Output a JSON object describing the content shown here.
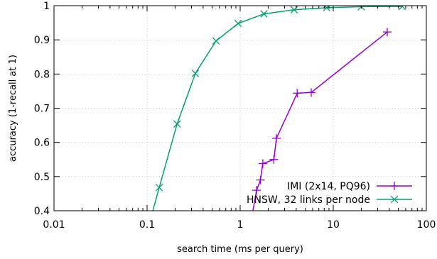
{
  "chart_data": {
    "type": "line",
    "title": "",
    "xlabel": "search time (ms per query)",
    "ylabel": "accuracy (1-recall at 1)",
    "xscale": "log",
    "xlim": [
      0.01,
      100
    ],
    "ylim": [
      0.4,
      1.0
    ],
    "x_ticks": [
      {
        "value": 0.01,
        "label": "0.01"
      },
      {
        "value": 0.1,
        "label": "0.1"
      },
      {
        "value": 1,
        "label": "1"
      },
      {
        "value": 10,
        "label": "10"
      },
      {
        "value": 100,
        "label": "100"
      }
    ],
    "y_ticks": [
      {
        "value": 0.4,
        "label": "0.4"
      },
      {
        "value": 0.5,
        "label": "0.5"
      },
      {
        "value": 0.6,
        "label": "0.6"
      },
      {
        "value": 0.7,
        "label": "0.7"
      },
      {
        "value": 0.8,
        "label": "0.8"
      },
      {
        "value": 0.9,
        "label": "0.9"
      },
      {
        "value": 1.0,
        "label": "1"
      }
    ],
    "grid": true,
    "legend_position": "bottom-right",
    "series": [
      {
        "name": "IMI (2x14, PQ96)",
        "color": "#9400d3",
        "marker": "plus",
        "points": [
          [
            1.33,
            0.38
          ],
          [
            1.5,
            0.46
          ],
          [
            1.65,
            0.49
          ],
          [
            1.75,
            0.538
          ],
          [
            2.3,
            0.55
          ],
          [
            2.45,
            0.612
          ],
          [
            4.1,
            0.744
          ],
          [
            5.8,
            0.746
          ],
          [
            38,
            0.923
          ]
        ]
      },
      {
        "name": "HNSW, 32 links per node",
        "color": "#009e73",
        "marker": "cross",
        "points": [
          [
            0.11,
            0.38
          ],
          [
            0.135,
            0.468
          ],
          [
            0.21,
            0.654
          ],
          [
            0.33,
            0.802
          ],
          [
            0.55,
            0.897
          ],
          [
            0.95,
            0.948
          ],
          [
            1.8,
            0.976
          ],
          [
            3.8,
            0.988
          ],
          [
            8.5,
            0.994
          ],
          [
            20,
            0.997
          ],
          [
            55,
            0.998
          ]
        ]
      }
    ]
  }
}
